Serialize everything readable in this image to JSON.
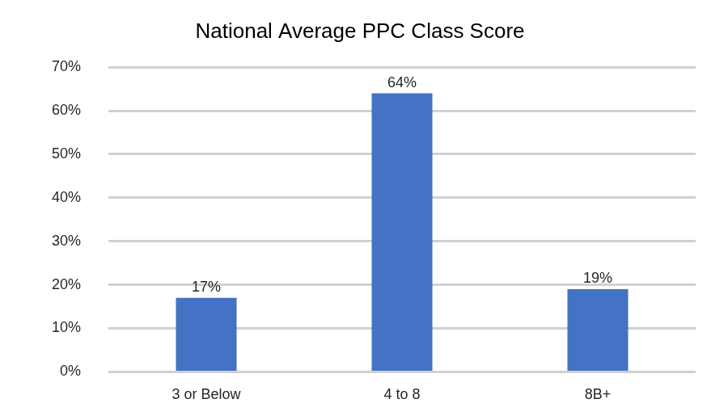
{
  "chart_data": {
    "type": "bar",
    "title": "National Average PPC Class Score",
    "categories": [
      "3 or Below",
      "4 to 8",
      "8B+"
    ],
    "values": [
      17,
      64,
      19
    ],
    "value_labels": [
      "17%",
      "64%",
      "19%"
    ],
    "data_labels": true,
    "color": "#4472c4",
    "ylim": [
      0,
      70
    ],
    "yticks": [
      {
        "value": 0,
        "label": "0%"
      },
      {
        "value": 10,
        "label": "10%"
      },
      {
        "value": 20,
        "label": "20%"
      },
      {
        "value": 30,
        "label": "30%"
      },
      {
        "value": 40,
        "label": "40%"
      },
      {
        "value": 50,
        "label": "50%"
      },
      {
        "value": 60,
        "label": "60%"
      },
      {
        "value": 70,
        "label": "70%"
      }
    ],
    "grid": true
  }
}
